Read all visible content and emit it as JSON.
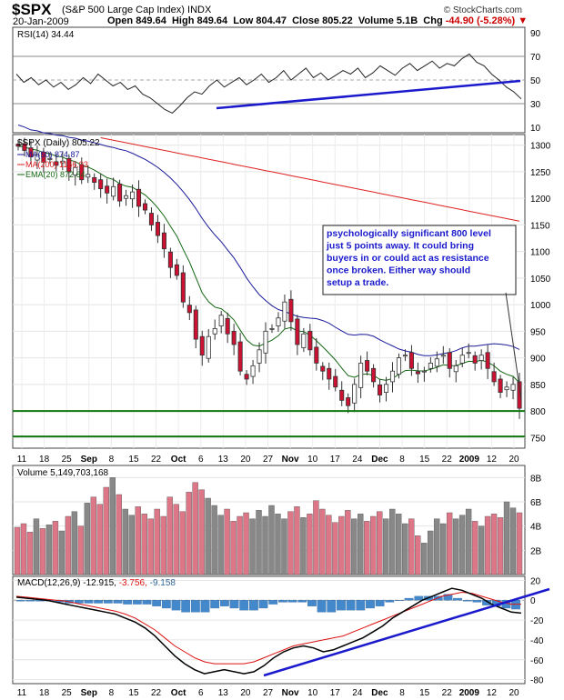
{
  "header": {
    "symbol": "$SPX",
    "name": "(S&P 500 Large Cap Index)",
    "exchange": "INDX",
    "date": "20-Jan-2009",
    "open_label": "Open",
    "open": "849.64",
    "high_label": "High",
    "high": "849.64",
    "low_label": "Low",
    "low": "804.47",
    "close_label": "Close",
    "close": "805.22",
    "volume_label": "Volume",
    "volume": "5.1B",
    "chg_label": "Chg",
    "chg": "-44.90 (-5.28%)",
    "copyright": "© StockCharts.com"
  },
  "colors": {
    "up": "#ffffff",
    "down": "#cc1133",
    "ma50": "#1a1a9a",
    "ma200": "#dd2222",
    "ema20": "#116611",
    "trend": "#1a1acc",
    "support": "#117711",
    "vol_up": "#888888",
    "vol_down": "#dd7788",
    "macd_hist": "#4488cc"
  },
  "chart_data": [
    {
      "type": "line",
      "panel": "rsi",
      "label": "RSI(14) 34.44",
      "yticks": [
        10,
        30,
        50,
        70,
        90
      ],
      "ylim": [
        10,
        90
      ],
      "values": [
        55,
        48,
        52,
        46,
        50,
        44,
        48,
        42,
        46,
        52,
        47,
        55,
        50,
        45,
        48,
        42,
        45,
        38,
        35,
        30,
        25,
        22,
        28,
        35,
        40,
        38,
        45,
        50,
        44,
        48,
        52,
        46,
        50,
        55,
        48,
        52,
        58,
        50,
        55,
        60,
        52,
        56,
        50,
        54,
        58,
        55,
        60,
        52,
        56,
        62,
        58,
        54,
        60,
        64,
        58,
        62,
        66,
        60,
        64,
        62,
        68,
        72,
        65,
        62,
        55,
        50,
        44,
        40,
        34
      ]
    },
    {
      "type": "candlestick",
      "panel": "price",
      "label": "$SPX (Daily) 805.22",
      "legend": [
        "MA(50) 874.87",
        "MA(200) 1156.93",
        "EMA(20) 872.64"
      ],
      "x_labels": [
        "11",
        "18",
        "25",
        "Sep",
        "8",
        "15",
        "22",
        "Oct",
        "6",
        "13",
        "20",
        "27",
        "Nov",
        "10",
        "17",
        "24",
        "Dec",
        "8",
        "15",
        "22",
        "2009",
        "12",
        "20"
      ],
      "yticks": [
        750,
        800,
        850,
        900,
        950,
        1000,
        1050,
        1100,
        1150,
        1200,
        1250,
        1300
      ],
      "ylim": [
        730,
        1320
      ],
      "support_levels": [
        800,
        752
      ],
      "closes": [
        1298,
        1290,
        1278,
        1282,
        1268,
        1275,
        1262,
        1270,
        1250,
        1258,
        1235,
        1245,
        1230,
        1218,
        1210,
        1222,
        1195,
        1205,
        1212,
        1185,
        1178,
        1150,
        1130,
        1105,
        1070,
        1055,
        1005,
        985,
        935,
        905,
        940,
        955,
        980,
        945,
        925,
        875,
        860,
        885,
        915,
        950,
        955,
        975,
        1005,
        968,
        925,
        945,
        915,
        890,
        875,
        860,
        845,
        820,
        810,
        850,
        890,
        875,
        855,
        830,
        850,
        875,
        900,
        905,
        880,
        870,
        875,
        890,
        898,
        905,
        880,
        885,
        905,
        910,
        890,
        905,
        880,
        855,
        835,
        845,
        850,
        805
      ],
      "annotation": "psychologically significant 800 level just 5 points away. It could bring buyers in or could act as resistance once broken. Either way should setup a trade."
    },
    {
      "type": "bar",
      "panel": "volume",
      "label": "Volume 5,149,703,168",
      "yticks": [
        "2B",
        "4B",
        "6B",
        "8B"
      ],
      "ylim": [
        0,
        9
      ],
      "values": [
        3.9,
        4.2,
        3.5,
        4.6,
        3.8,
        4.1,
        4.4,
        3.6,
        4.8,
        5.2,
        4.0,
        5.9,
        6.4,
        5.8,
        7.2,
        8.0,
        6.6,
        5.4,
        4.9,
        5.6,
        5.0,
        4.6,
        5.4,
        4.8,
        6.4,
        5.8,
        5.2,
        6.8,
        7.6,
        7.0,
        6.3,
        5.7,
        4.9,
        5.4,
        4.4,
        4.8,
        5.1,
        4.6,
        5.3,
        4.8,
        5.7,
        5.0,
        4.6,
        5.2,
        5.6,
        4.7,
        5.0,
        6.1,
        5.4,
        4.9,
        4.3,
        4.8,
        5.3,
        4.6,
        5.0,
        4.4,
        4.8,
        5.2,
        4.6,
        5.4,
        5.0,
        4.2,
        4.6,
        3.2,
        2.6,
        3.6,
        4.6,
        4.2,
        5.1,
        4.6,
        4.9,
        5.4,
        4.4,
        4.0,
        4.8,
        5.0,
        4.7,
        6.0,
        5.5,
        5.1
      ]
    },
    {
      "type": "line",
      "panel": "macd",
      "label": "MACD(12,26,9) -12.915, -3.756, -9.158",
      "yticks": [
        20,
        0,
        -20,
        -40,
        -60,
        -80
      ],
      "ylim": [
        -80,
        20
      ],
      "macd": [
        3,
        2,
        1,
        0,
        -2,
        -4,
        -6,
        -8,
        -10,
        -12,
        -14,
        -18,
        -22,
        -28,
        -36,
        -46,
        -56,
        -64,
        -70,
        -74,
        -72,
        -70,
        -72,
        -74,
        -72,
        -66,
        -58,
        -52,
        -48,
        -46,
        -48,
        -52,
        -50,
        -46,
        -42,
        -38,
        -32,
        -26,
        -18,
        -12,
        -6,
        0,
        4,
        8,
        12,
        10,
        6,
        2,
        -4,
        -8,
        -12,
        -13
      ],
      "signal": [
        4,
        3,
        2,
        1,
        0,
        -1,
        -3,
        -5,
        -7,
        -9,
        -11,
        -14,
        -18,
        -24,
        -30,
        -38,
        -46,
        -52,
        -58,
        -62,
        -64,
        -64,
        -64,
        -64,
        -62,
        -58,
        -54,
        -50,
        -46,
        -44,
        -42,
        -40,
        -38,
        -36,
        -32,
        -28,
        -24,
        -20,
        -16,
        -12,
        -8,
        -4,
        0,
        4,
        6,
        8,
        7,
        4,
        1,
        -2,
        -4,
        -4
      ],
      "hist": [
        -1,
        -1,
        -1,
        -1,
        -2,
        -3,
        -3,
        -3,
        -3,
        -3,
        -3,
        -4,
        -4,
        -4,
        -6,
        -8,
        -10,
        -12,
        -12,
        -12,
        -8,
        -6,
        -8,
        -10,
        -10,
        -8,
        -4,
        -2,
        -2,
        -2,
        -6,
        -12,
        -12,
        -10,
        -10,
        -10,
        -8,
        -6,
        -2,
        0,
        2,
        4,
        4,
        4,
        6,
        2,
        -1,
        -2,
        -5,
        -6,
        -8,
        -9
      ]
    }
  ]
}
